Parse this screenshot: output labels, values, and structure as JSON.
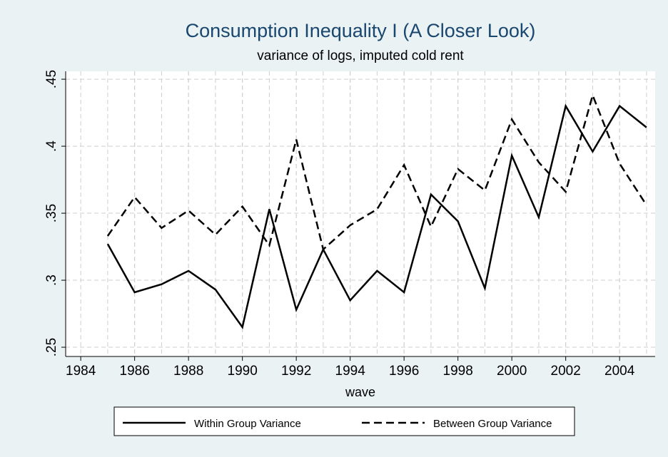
{
  "chart_data": {
    "type": "line",
    "title": "Consumption Inequality I (A Closer Look)",
    "subtitle": "variance of logs, imputed cold rent",
    "x_label": "wave",
    "x": [
      1985,
      1986,
      1987,
      1988,
      1989,
      1990,
      1991,
      1992,
      1993,
      1994,
      1995,
      1996,
      1997,
      1998,
      1999,
      2000,
      2001,
      2002,
      2003,
      2004,
      2005
    ],
    "series": [
      {
        "name": "Within Group Variance",
        "color": "#000000",
        "dash": "solid",
        "values": [
          0.327,
          0.291,
          0.297,
          0.307,
          0.293,
          0.265,
          0.353,
          0.278,
          0.323,
          0.285,
          0.307,
          0.291,
          0.364,
          0.344,
          0.294,
          0.393,
          0.347,
          0.43,
          0.396,
          0.43,
          0.414
        ]
      },
      {
        "name": "Between Group Variance",
        "color": "#000000",
        "dash": "dashed",
        "values": [
          0.333,
          0.362,
          0.339,
          0.352,
          0.334,
          0.355,
          0.326,
          0.405,
          0.323,
          0.341,
          0.353,
          0.386,
          0.34,
          0.383,
          0.367,
          0.42,
          0.388,
          0.366,
          0.438,
          0.387,
          0.356
        ]
      }
    ],
    "xlim": [
      1983.44,
      2005.32
    ],
    "ylim": [
      0.2431,
      0.4559
    ],
    "xticks": [
      1984,
      1986,
      1988,
      1990,
      1992,
      1994,
      1996,
      1998,
      2000,
      2002,
      2004
    ],
    "yticks": [
      {
        "value": 0.25,
        "label": ".25"
      },
      {
        "value": 0.3,
        "label": ".3"
      },
      {
        "value": 0.35,
        "label": ".35"
      },
      {
        "value": 0.4,
        "label": ".4"
      },
      {
        "value": 0.45,
        "label": ".45"
      }
    ],
    "grid": true,
    "legend": "bottom"
  }
}
